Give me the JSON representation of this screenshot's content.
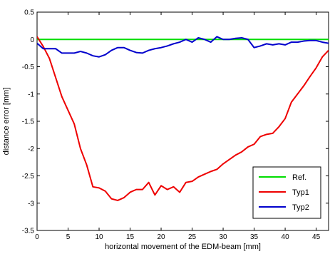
{
  "chart_data": {
    "type": "line",
    "title": "",
    "xlabel": "horizontal movement of the EDM-beam [mm]",
    "ylabel": "distance error [mm]",
    "xlim": [
      0,
      47
    ],
    "ylim": [
      -3.5,
      0.5
    ],
    "xticks": [
      0,
      5,
      10,
      15,
      20,
      25,
      30,
      35,
      40,
      45
    ],
    "yticks": [
      0.5,
      0,
      -0.5,
      -1,
      -1.5,
      -2,
      -2.5,
      -3,
      -3.5
    ],
    "xtick_labels": [
      "0",
      "5",
      "10",
      "15",
      "20",
      "25",
      "30",
      "35",
      "40",
      "45"
    ],
    "ytick_labels": [
      "0.5",
      "0",
      "-0.5",
      "-1",
      "-1.5",
      "-2",
      "-2.5",
      "-3",
      "-3.5"
    ],
    "grid": false,
    "legend_position": "bottom-right",
    "series": [
      {
        "name": "Ref.",
        "color": "#00dd00",
        "x": [
          0,
          47
        ],
        "y": [
          0,
          0
        ]
      },
      {
        "name": "Typ1",
        "color": "#ee0000",
        "x": [
          0,
          1,
          2,
          3,
          4,
          5,
          6,
          7,
          8,
          9,
          10,
          11,
          12,
          13,
          14,
          15,
          16,
          17,
          18,
          19,
          20,
          21,
          22,
          23,
          24,
          25,
          26,
          27,
          28,
          29,
          30,
          31,
          32,
          33,
          34,
          35,
          36,
          37,
          38,
          39,
          40,
          41,
          42,
          43,
          44,
          45,
          46,
          47
        ],
        "y": [
          0.05,
          -0.13,
          -0.35,
          -0.7,
          -1.05,
          -1.3,
          -1.55,
          -2.0,
          -2.3,
          -2.7,
          -2.72,
          -2.78,
          -2.92,
          -2.95,
          -2.9,
          -2.8,
          -2.75,
          -2.75,
          -2.62,
          -2.85,
          -2.68,
          -2.75,
          -2.7,
          -2.8,
          -2.62,
          -2.6,
          -2.52,
          -2.47,
          -2.42,
          -2.38,
          -2.28,
          -2.2,
          -2.12,
          -2.06,
          -1.97,
          -1.92,
          -1.78,
          -1.74,
          -1.72,
          -1.6,
          -1.45,
          -1.15,
          -1.0,
          -0.85,
          -0.68,
          -0.52,
          -0.32,
          -0.2
        ]
      },
      {
        "name": "Typ2",
        "color": "#0000cc",
        "x": [
          0,
          1,
          2,
          3,
          4,
          5,
          6,
          7,
          8,
          9,
          10,
          11,
          12,
          13,
          14,
          15,
          16,
          17,
          18,
          19,
          20,
          21,
          22,
          23,
          24,
          25,
          26,
          27,
          28,
          29,
          30,
          31,
          32,
          33,
          34,
          35,
          36,
          37,
          38,
          39,
          40,
          41,
          42,
          43,
          44,
          45,
          46,
          47
        ],
        "y": [
          -0.07,
          -0.17,
          -0.17,
          -0.17,
          -0.25,
          -0.25,
          -0.25,
          -0.22,
          -0.25,
          -0.3,
          -0.32,
          -0.28,
          -0.2,
          -0.15,
          -0.15,
          -0.2,
          -0.24,
          -0.25,
          -0.2,
          -0.17,
          -0.15,
          -0.12,
          -0.08,
          -0.05,
          0.0,
          -0.05,
          0.03,
          0.0,
          -0.05,
          0.05,
          0.0,
          0.0,
          0.02,
          0.03,
          0.0,
          -0.15,
          -0.12,
          -0.08,
          -0.1,
          -0.08,
          -0.1,
          -0.05,
          -0.05,
          -0.03,
          -0.02,
          -0.02,
          -0.05,
          -0.07
        ]
      }
    ]
  }
}
